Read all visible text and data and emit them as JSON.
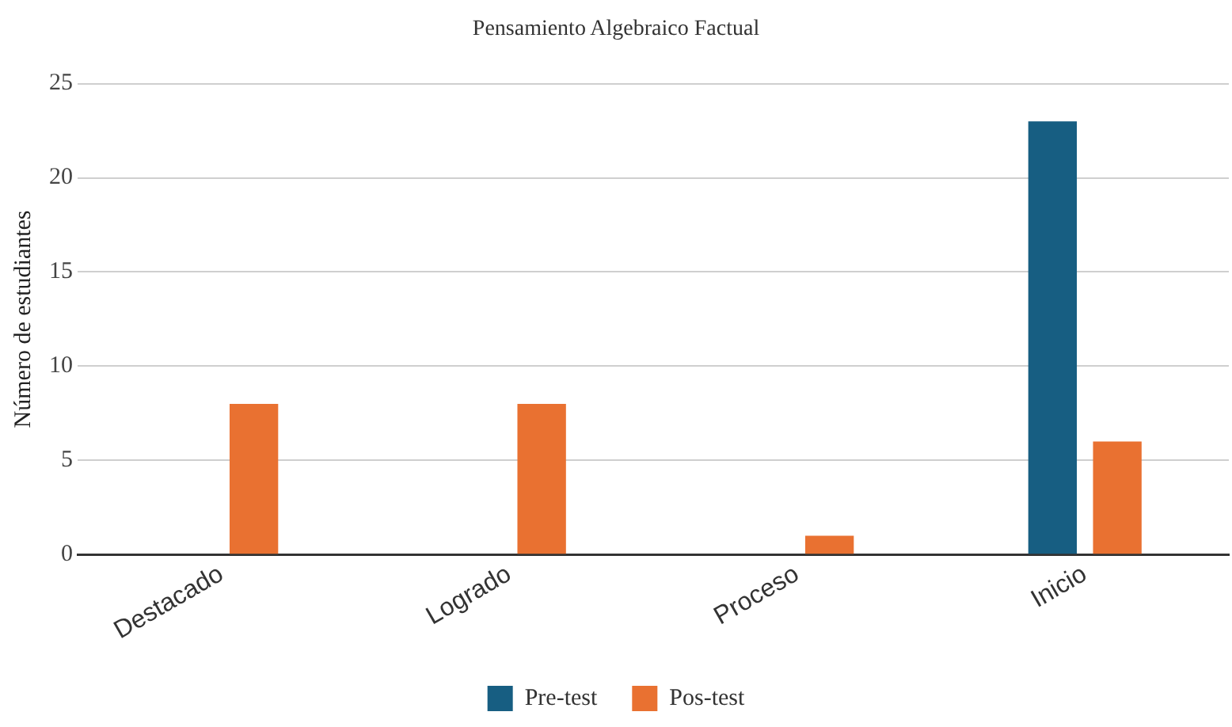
{
  "chart_data": {
    "type": "bar",
    "title": "Pensamiento Algebraico Factual",
    "ylabel": "Número de estudiantes",
    "categories": [
      "Destacado",
      "Logrado",
      "Proceso",
      "Inicio"
    ],
    "series": [
      {
        "name": "Pre-test",
        "color": "#175e82",
        "values": [
          0,
          0,
          0,
          23
        ]
      },
      {
        "name": "Pos-test",
        "color": "#e97131",
        "values": [
          8,
          8,
          1,
          6
        ]
      }
    ],
    "ylim": [
      0,
      25
    ],
    "yticks": [
      0,
      5,
      10,
      15,
      20,
      25
    ],
    "grid": "y",
    "legend": "bottom"
  }
}
